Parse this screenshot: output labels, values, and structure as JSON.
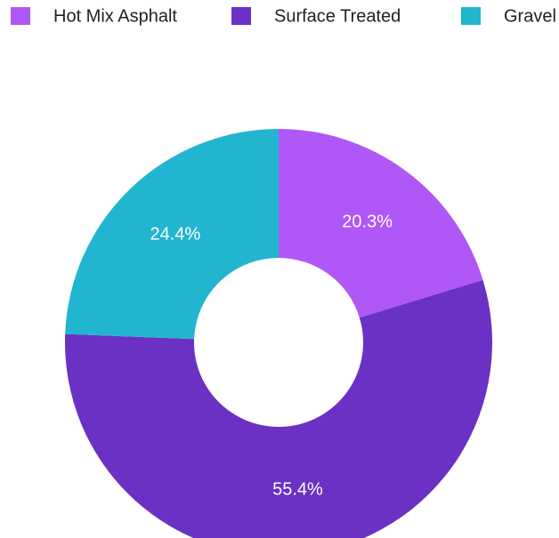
{
  "chart_data": {
    "type": "donut",
    "categories": [
      "Hot Mix Asphalt",
      "Surface Treated",
      "Gravel"
    ],
    "values": [
      20.3,
      55.4,
      24.4
    ],
    "value_labels": [
      "20.3%",
      "55.4%",
      "24.4%"
    ],
    "colors": [
      "#b057f8",
      "#6a31c4",
      "#22b5d0"
    ],
    "legend": "top"
  }
}
